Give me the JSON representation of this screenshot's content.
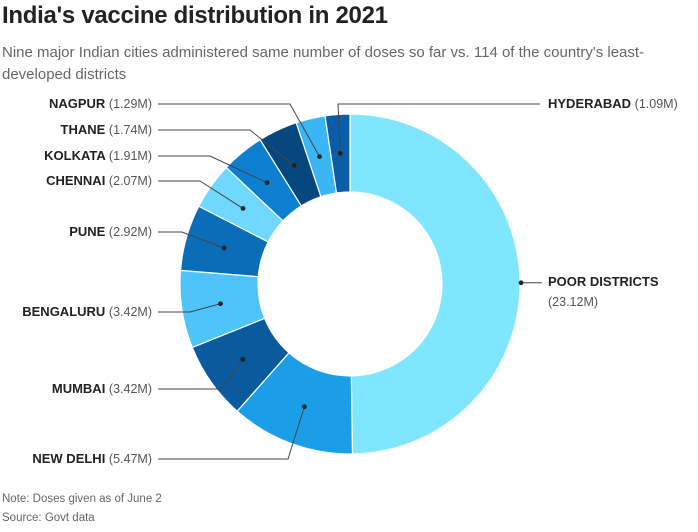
{
  "title": "India's vaccine distribution in 2021",
  "subtitle": "Nine major Indian cities administered same number of doses so far vs. 114 of the country's least-developed districts",
  "note": "Note: Doses given as of June 2",
  "source": "Source: Govt data",
  "chart_data": {
    "type": "pie",
    "style": "donut",
    "slices": [
      {
        "label": "POOR DISTRICTS",
        "value_label": "(23.12M)",
        "value": 23.12,
        "color": "#80e6ff"
      },
      {
        "label": "NEW DELHI",
        "value_label": "(5.47M)",
        "value": 5.47,
        "color": "#1a9ee8"
      },
      {
        "label": "MUMBAI",
        "value_label": "(3.42M)",
        "value": 3.42,
        "color": "#0b5a9e"
      },
      {
        "label": "BENGALURU",
        "value_label": "(3.42M)",
        "value": 3.42,
        "color": "#4ec4fb"
      },
      {
        "label": "PUNE",
        "value_label": "(2.92M)",
        "value": 2.92,
        "color": "#0b6db8"
      },
      {
        "label": "CHENNAI",
        "value_label": "(2.07M)",
        "value": 2.07,
        "color": "#6fd8ff"
      },
      {
        "label": "KOLKATA",
        "value_label": "(1.91M)",
        "value": 1.91,
        "color": "#0d7fd1"
      },
      {
        "label": "THANE",
        "value_label": "(1.74M)",
        "value": 1.74,
        "color": "#07477f"
      },
      {
        "label": "NAGPUR",
        "value_label": "(1.29M)",
        "value": 1.29,
        "color": "#3ab6f5"
      },
      {
        "label": "HYDERABAD",
        "value_label": "(1.09M)",
        "value": 1.09,
        "color": "#0a5ea8"
      }
    ]
  }
}
